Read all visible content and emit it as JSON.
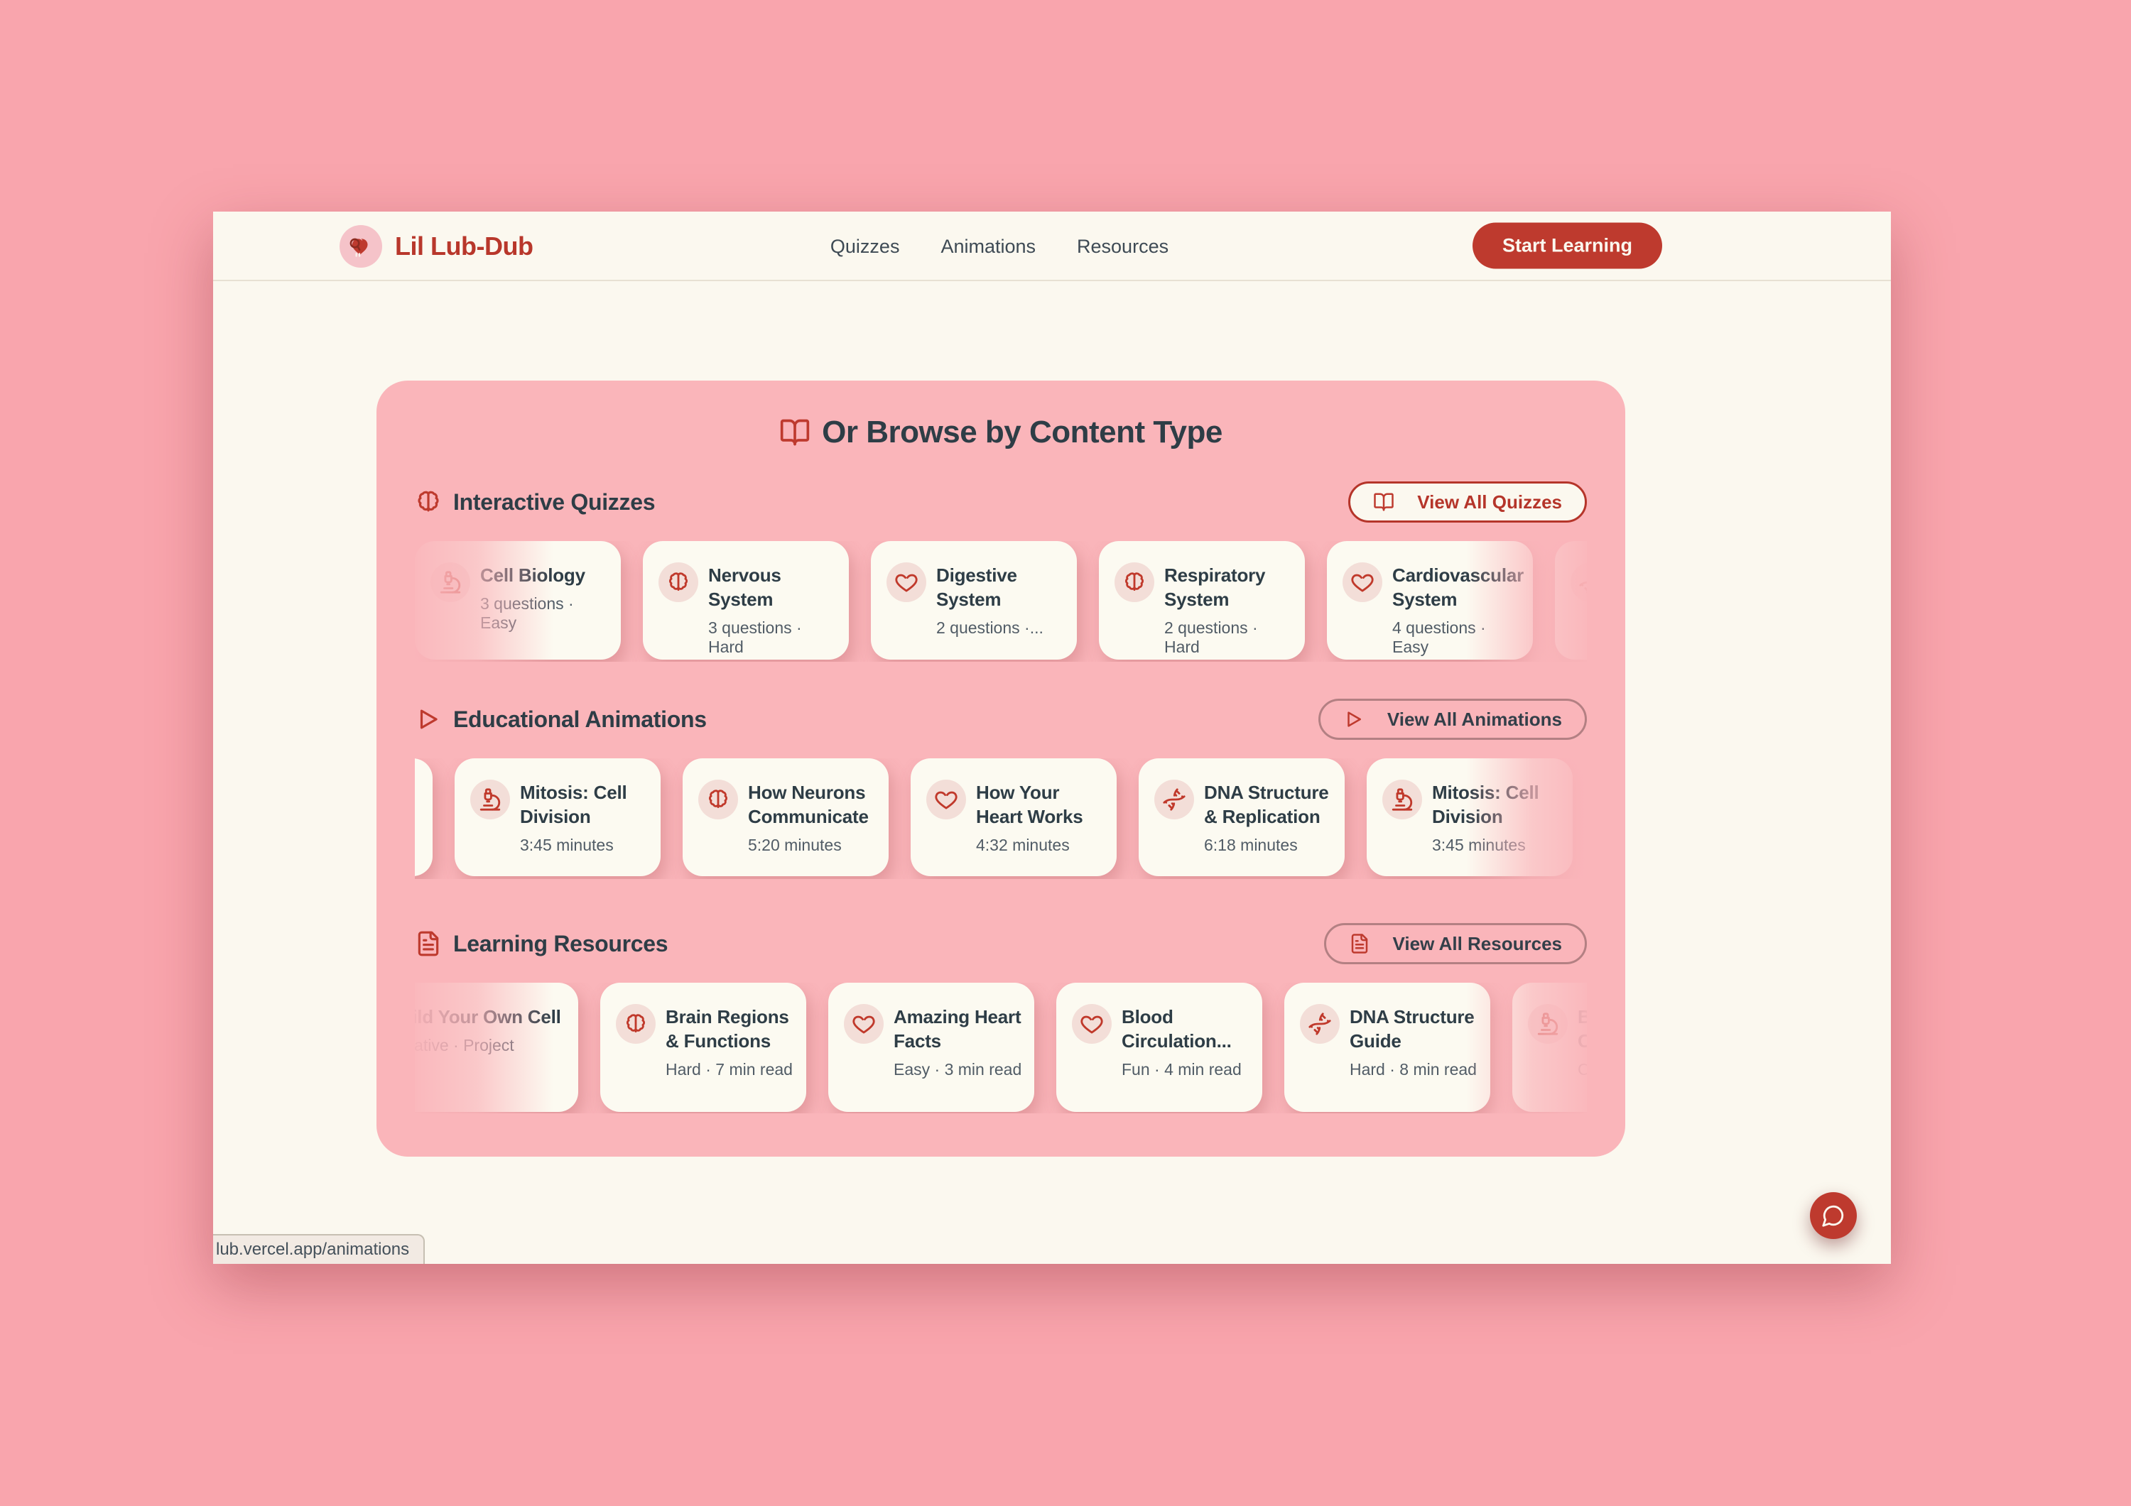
{
  "page": {
    "background_pink": "#F9A5AD",
    "panel_pink": "#FAB5BA",
    "surface_cream": "#FBF8EF",
    "accent_red": "#BE3A2E",
    "text_dark": "#2E3D46",
    "text_muted": "#515C66"
  },
  "header": {
    "logo_icon": "heart-stethoscope-logo",
    "brand": "Lil Lub-Dub",
    "nav": [
      {
        "label": "Quizzes"
      },
      {
        "label": "Animations"
      },
      {
        "label": "Resources"
      }
    ],
    "cta_label": "Start Learning"
  },
  "panel": {
    "title": "Or Browse by Content Type",
    "title_icon": "book-open-icon",
    "sections": [
      {
        "title": "Interactive Quizzes",
        "icon": "brain-icon",
        "view_all": {
          "label": "View All Quizzes",
          "icon": "book-open-icon",
          "style": "solid"
        },
        "cards": [
          {
            "icon": "microscope-icon",
            "title": "Cell Biology",
            "subtitle": "3 questions · Easy"
          },
          {
            "icon": "brain-icon",
            "title": "Nervous System",
            "subtitle": "3 questions · Hard"
          },
          {
            "icon": "heart-icon",
            "title": "Digestive System",
            "subtitle": "2 questions ·..."
          },
          {
            "icon": "brain-icon",
            "title": "Respiratory System",
            "subtitle": "2 questions · Hard"
          },
          {
            "icon": "heart-icon",
            "title": "Cardiovascular System",
            "subtitle": "4 questions · Easy"
          },
          {
            "icon": "dna-icon",
            "title": "",
            "subtitle": "",
            "edge": "peek-right"
          }
        ]
      },
      {
        "title": "Educational Animations",
        "icon": "play-icon",
        "view_all": {
          "label": "View All Animations",
          "icon": "play-icon",
          "style": "outline"
        },
        "cards": [
          {
            "icon": null,
            "title": "",
            "subtitle": "",
            "edge": "peek-left"
          },
          {
            "icon": "microscope-icon",
            "title": "Mitosis: Cell Division",
            "subtitle": "3:45 minutes"
          },
          {
            "icon": "brain-icon",
            "title": "How Neurons Communicate",
            "subtitle": "5:20 minutes"
          },
          {
            "icon": "heart-icon",
            "title": "How Your Heart Works",
            "subtitle": "4:32 minutes"
          },
          {
            "icon": "dna-icon",
            "title": "DNA Structure & Replication",
            "subtitle": "6:18 minutes"
          },
          {
            "icon": "microscope-icon",
            "title": "Mitosis: Cell Division",
            "subtitle": "3:45 minutes",
            "edge": "fade-right"
          }
        ]
      },
      {
        "title": "Learning Resources",
        "icon": "file-text-icon",
        "view_all": {
          "label": "View All Resources",
          "icon": "file-text-icon",
          "style": "outline"
        },
        "cards": [
          {
            "icon": null,
            "title": "Build Your Own Cell",
            "subtitle": "Creative · Project",
            "edge": "cut-left"
          },
          {
            "icon": "brain-icon",
            "title": "Brain Regions & Functions",
            "subtitle": "Hard · 7 min read"
          },
          {
            "icon": "heart-icon",
            "title": "Amazing Heart Facts",
            "subtitle": "Easy · 3 min read"
          },
          {
            "icon": "heart-icon",
            "title": "Blood Circulation...",
            "subtitle": "Fun · 4 min read"
          },
          {
            "icon": "dna-icon",
            "title": "DNA Structure Guide",
            "subtitle": "Hard · 8 min read"
          },
          {
            "icon": "microscope-icon",
            "title": "Build Your Own Cell",
            "subtitle": "Creative · Project",
            "edge": "cut-right"
          }
        ]
      }
    ]
  },
  "statusbar": {
    "url": "lub.vercel.app/animations"
  },
  "chat_button": {
    "icon": "chat-bubble-icon"
  }
}
